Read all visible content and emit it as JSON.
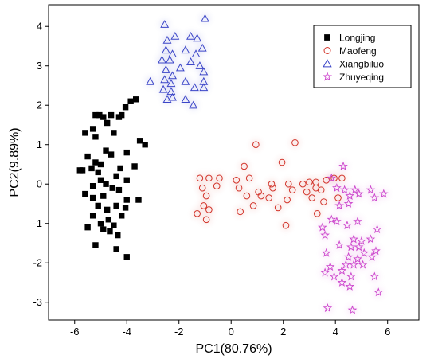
{
  "chart_data": {
    "type": "scatter",
    "title": "",
    "xlabel": "PC1(80.76%)",
    "ylabel": "PC2(9.89%)",
    "xlim": [
      -7,
      7.2
    ],
    "ylim": [
      -3.45,
      4.55
    ],
    "xticks": [
      -6,
      -4,
      -2,
      0,
      2,
      4,
      6
    ],
    "yticks": [
      -3,
      -2,
      -1,
      0,
      1,
      2,
      3,
      4
    ],
    "grid": false,
    "legend": "top-right",
    "series": [
      {
        "name": "Longjing",
        "marker": "filled-square",
        "color": "#000000",
        "points": [
          [
            -5.2,
            1.75
          ],
          [
            -5.05,
            1.75
          ],
          [
            -4.9,
            1.7
          ],
          [
            -4.6,
            1.75
          ],
          [
            -4.3,
            1.7
          ],
          [
            -4.2,
            1.75
          ],
          [
            -4.05,
            1.95
          ],
          [
            -3.85,
            2.1
          ],
          [
            -3.65,
            2.15
          ],
          [
            -4.75,
            1.55
          ],
          [
            -5.3,
            1.4
          ],
          [
            -5.6,
            1.3
          ],
          [
            -5.2,
            1.2
          ],
          [
            -4.5,
            1.3
          ],
          [
            -4.8,
            0.85
          ],
          [
            -3.5,
            1.1
          ],
          [
            -3.3,
            1.0
          ],
          [
            -5.5,
            0.7
          ],
          [
            -5.35,
            0.4
          ],
          [
            -5.2,
            0.55
          ],
          [
            -5.0,
            0.5
          ],
          [
            -4.6,
            0.75
          ],
          [
            -4.0,
            0.8
          ],
          [
            -3.7,
            0.45
          ],
          [
            -5.8,
            0.35
          ],
          [
            -5.7,
            0.35
          ],
          [
            -5.1,
            0.3
          ],
          [
            -5.0,
            0.1
          ],
          [
            -4.4,
            0.2
          ],
          [
            -4.25,
            0.4
          ],
          [
            -4.0,
            0.1
          ],
          [
            -5.3,
            -0.05
          ],
          [
            -4.8,
            0.0
          ],
          [
            -4.55,
            -0.1
          ],
          [
            -4.3,
            -0.15
          ],
          [
            -5.6,
            -0.25
          ],
          [
            -5.3,
            -0.35
          ],
          [
            -4.9,
            -0.3
          ],
          [
            -4.0,
            -0.4
          ],
          [
            -3.55,
            -0.4
          ],
          [
            -5.1,
            -0.55
          ],
          [
            -4.75,
            -0.65
          ],
          [
            -4.4,
            -0.55
          ],
          [
            -4.05,
            -0.6
          ],
          [
            -5.3,
            -0.8
          ],
          [
            -4.7,
            -0.9
          ],
          [
            -4.2,
            -0.8
          ],
          [
            -5.0,
            -1.0
          ],
          [
            -4.5,
            -1.05
          ],
          [
            -5.5,
            -1.1
          ],
          [
            -4.9,
            -1.15
          ],
          [
            -4.65,
            -1.2
          ],
          [
            -4.35,
            -1.3
          ],
          [
            -5.2,
            -1.55
          ],
          [
            -4.4,
            -1.65
          ],
          [
            -4.0,
            -1.85
          ]
        ]
      },
      {
        "name": "Maofeng",
        "marker": "open-circle",
        "color": "#d2342a",
        "points": [
          [
            0.95,
            1.0
          ],
          [
            2.45,
            1.05
          ],
          [
            0.5,
            0.45
          ],
          [
            1.95,
            0.55
          ],
          [
            -1.2,
            0.15
          ],
          [
            -0.85,
            0.15
          ],
          [
            -0.45,
            0.15
          ],
          [
            0.2,
            0.1
          ],
          [
            0.7,
            0.15
          ],
          [
            1.55,
            0.0
          ],
          [
            2.2,
            0.0
          ],
          [
            2.75,
            0.0
          ],
          [
            3.0,
            0.05
          ],
          [
            3.25,
            0.05
          ],
          [
            3.65,
            0.1
          ],
          [
            3.95,
            0.15
          ],
          [
            4.25,
            0.15
          ],
          [
            -1.1,
            -0.1
          ],
          [
            -0.55,
            -0.05
          ],
          [
            0.3,
            -0.1
          ],
          [
            1.05,
            -0.2
          ],
          [
            1.6,
            -0.1
          ],
          [
            2.35,
            -0.15
          ],
          [
            2.9,
            -0.2
          ],
          [
            3.25,
            -0.1
          ],
          [
            3.45,
            -0.15
          ],
          [
            -0.95,
            -0.3
          ],
          [
            0.6,
            -0.3
          ],
          [
            1.15,
            -0.3
          ],
          [
            1.45,
            -0.35
          ],
          [
            2.15,
            -0.4
          ],
          [
            3.1,
            -0.35
          ],
          [
            3.55,
            -0.45
          ],
          [
            4.1,
            -0.35
          ],
          [
            -1.05,
            -0.55
          ],
          [
            -0.85,
            -0.65
          ],
          [
            0.35,
            -0.7
          ],
          [
            0.85,
            -0.55
          ],
          [
            1.8,
            -0.6
          ],
          [
            3.3,
            -0.75
          ],
          [
            -0.95,
            -0.9
          ],
          [
            -1.3,
            -0.75
          ],
          [
            2.1,
            -1.05
          ]
        ]
      },
      {
        "name": "Xiangbiluo",
        "marker": "open-triangle",
        "color": "#3c46c8",
        "points": [
          [
            -2.55,
            4.05
          ],
          [
            -1.0,
            4.2
          ],
          [
            -2.45,
            3.65
          ],
          [
            -2.15,
            3.75
          ],
          [
            -1.55,
            3.75
          ],
          [
            -1.3,
            3.7
          ],
          [
            -2.5,
            3.4
          ],
          [
            -2.25,
            3.3
          ],
          [
            -1.75,
            3.4
          ],
          [
            -1.35,
            3.3
          ],
          [
            -1.1,
            3.45
          ],
          [
            -2.65,
            3.15
          ],
          [
            -2.35,
            3.15
          ],
          [
            -1.55,
            3.1
          ],
          [
            -1.2,
            3.0
          ],
          [
            -2.5,
            2.9
          ],
          [
            -1.95,
            2.95
          ],
          [
            -2.25,
            2.75
          ],
          [
            -1.05,
            2.85
          ],
          [
            -3.1,
            2.6
          ],
          [
            -2.55,
            2.65
          ],
          [
            -2.3,
            2.55
          ],
          [
            -1.75,
            2.6
          ],
          [
            -1.05,
            2.6
          ],
          [
            -2.6,
            2.4
          ],
          [
            -2.3,
            2.35
          ],
          [
            -1.4,
            2.45
          ],
          [
            -1.05,
            2.45
          ],
          [
            -2.45,
            2.15
          ],
          [
            -2.25,
            2.2
          ],
          [
            -1.75,
            2.15
          ],
          [
            -1.45,
            2.0
          ]
        ]
      },
      {
        "name": "Zhuyeqing",
        "marker": "open-star",
        "color": "#cc44cc",
        "points": [
          [
            4.3,
            0.45
          ],
          [
            3.85,
            0.15
          ],
          [
            4.05,
            -0.1
          ],
          [
            4.35,
            -0.15
          ],
          [
            4.75,
            -0.15
          ],
          [
            5.35,
            -0.15
          ],
          [
            5.85,
            -0.25
          ],
          [
            4.55,
            -0.3
          ],
          [
            4.9,
            -0.25
          ],
          [
            4.5,
            -0.5
          ],
          [
            4.15,
            -0.55
          ],
          [
            5.5,
            -0.35
          ],
          [
            3.85,
            -0.9
          ],
          [
            4.05,
            -0.95
          ],
          [
            4.85,
            -0.95
          ],
          [
            3.5,
            -1.1
          ],
          [
            4.45,
            -1.05
          ],
          [
            5.6,
            -1.15
          ],
          [
            3.6,
            -1.3
          ],
          [
            4.7,
            -1.4
          ],
          [
            5.35,
            -1.4
          ],
          [
            5.0,
            -1.45
          ],
          [
            4.15,
            -1.55
          ],
          [
            4.6,
            -1.6
          ],
          [
            4.9,
            -1.6
          ],
          [
            5.1,
            -1.75
          ],
          [
            5.55,
            -1.7
          ],
          [
            5.4,
            -1.85
          ],
          [
            3.65,
            -1.75
          ],
          [
            4.5,
            -1.85
          ],
          [
            4.85,
            -1.9
          ],
          [
            4.7,
            -2.05
          ],
          [
            4.4,
            -2.05
          ],
          [
            5.05,
            -2.05
          ],
          [
            3.8,
            -2.1
          ],
          [
            4.25,
            -2.2
          ],
          [
            3.6,
            -2.25
          ],
          [
            4.6,
            -2.35
          ],
          [
            3.95,
            -2.35
          ],
          [
            4.25,
            -2.5
          ],
          [
            4.55,
            -2.6
          ],
          [
            5.5,
            -2.35
          ],
          [
            5.65,
            -2.75
          ],
          [
            3.7,
            -3.15
          ],
          [
            4.65,
            -3.2
          ]
        ]
      }
    ]
  }
}
